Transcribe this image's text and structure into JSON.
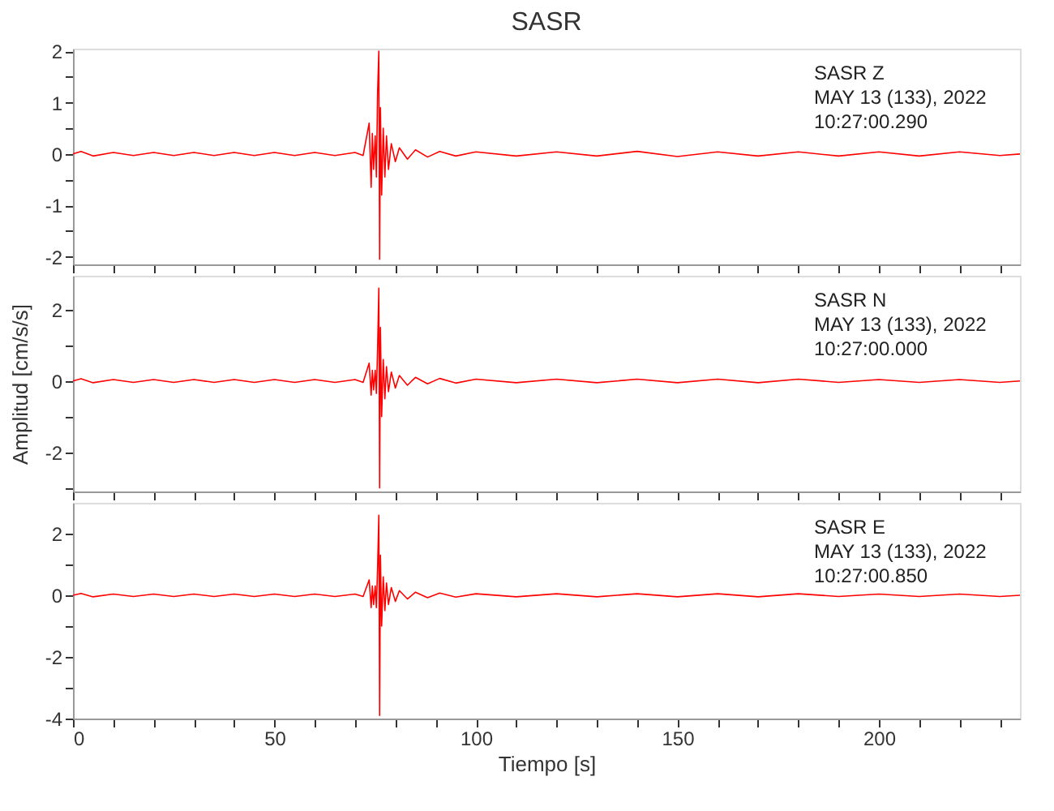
{
  "chart_data": [
    {
      "type": "line",
      "title": "SASR",
      "xlim": [
        0,
        235
      ],
      "ylim": [
        -2.15,
        2.05
      ],
      "tick_labels": "y",
      "grid": false,
      "legend": false,
      "marker": "none",
      "line_style": "solid",
      "xticks": [
        0,
        {
          "value": 10,
          "label": null
        },
        {
          "value": 20,
          "label": null
        },
        {
          "value": 30,
          "label": null
        },
        {
          "value": 40,
          "label": null
        },
        50,
        {
          "value": 60,
          "label": null
        },
        {
          "value": 70,
          "label": null
        },
        {
          "value": 80,
          "label": null
        },
        {
          "value": 90,
          "label": null
        },
        100,
        {
          "value": 110,
          "label": null
        },
        {
          "value": 120,
          "label": null
        },
        {
          "value": 130,
          "label": null
        },
        {
          "value": 140,
          "label": null
        },
        150,
        {
          "value": 160,
          "label": null
        },
        {
          "value": 170,
          "label": null
        },
        {
          "value": 180,
          "label": null
        },
        {
          "value": 190,
          "label": null
        },
        200,
        {
          "value": 210,
          "label": null
        },
        {
          "value": 220,
          "label": null
        },
        {
          "value": 230,
          "label": null
        }
      ],
      "yticks": [
        -2,
        {
          "value": -1.5,
          "label": null
        },
        -1,
        {
          "value": -0.5,
          "label": null
        },
        0,
        {
          "value": 0.5,
          "label": null
        },
        1,
        {
          "value": 1.5,
          "label": null
        },
        2
      ],
      "annotations": [
        "SASR   Z",
        "MAY 13 (133), 2022",
        "10:27:00.290"
      ],
      "x": [
        0,
        2,
        5,
        10,
        15,
        20,
        25,
        30,
        35,
        40,
        45,
        50,
        55,
        60,
        65,
        70,
        72,
        73.5,
        74,
        74.3,
        74.6,
        75,
        75.3,
        75.6,
        75.9,
        76.1,
        76.3,
        76.6,
        77,
        77.4,
        77.8,
        78.3,
        79,
        80,
        81,
        83,
        85,
        88,
        91,
        95,
        100,
        110,
        120,
        130,
        140,
        150,
        160,
        170,
        180,
        190,
        200,
        210,
        220,
        230,
        235
      ],
      "series": [
        {
          "color": "#ff0000",
          "values": [
            0,
            0.05,
            -0.04,
            0.03,
            -0.03,
            0.03,
            -0.03,
            0.03,
            -0.03,
            0.03,
            -0.03,
            0.03,
            -0.03,
            0.03,
            -0.03,
            0.03,
            -0.03,
            0.6,
            -0.65,
            0.4,
            -0.3,
            0.35,
            -0.45,
            1.2,
            2.0,
            -2.05,
            0.9,
            -0.8,
            0.5,
            -0.45,
            0.35,
            -0.3,
            0.2,
            -0.15,
            0.12,
            -0.1,
            0.08,
            -0.06,
            0.05,
            -0.04,
            0.04,
            -0.04,
            0.04,
            -0.04,
            0.05,
            -0.05,
            0.04,
            -0.04,
            0.04,
            -0.04,
            0.04,
            -0.04,
            0.04,
            -0.03,
            0
          ]
        }
      ]
    },
    {
      "type": "line",
      "ylabel": "Amplitud [cm/s/s]",
      "xlim": [
        0,
        235
      ],
      "ylim": [
        -3.1,
        2.95
      ],
      "tick_labels": "y",
      "grid": false,
      "legend": false,
      "marker": "none",
      "line_style": "solid",
      "xticks": [
        0,
        {
          "value": 10,
          "label": null
        },
        {
          "value": 20,
          "label": null
        },
        {
          "value": 30,
          "label": null
        },
        {
          "value": 40,
          "label": null
        },
        50,
        {
          "value": 60,
          "label": null
        },
        {
          "value": 70,
          "label": null
        },
        {
          "value": 80,
          "label": null
        },
        {
          "value": 90,
          "label": null
        },
        100,
        {
          "value": 110,
          "label": null
        },
        {
          "value": 120,
          "label": null
        },
        {
          "value": 130,
          "label": null
        },
        {
          "value": 140,
          "label": null
        },
        150,
        {
          "value": 160,
          "label": null
        },
        {
          "value": 170,
          "label": null
        },
        {
          "value": 180,
          "label": null
        },
        {
          "value": 190,
          "label": null
        },
        200,
        {
          "value": 210,
          "label": null
        },
        {
          "value": 220,
          "label": null
        },
        {
          "value": 230,
          "label": null
        }
      ],
      "yticks": [
        {
          "value": -3,
          "label": null
        },
        -2,
        {
          "value": -1,
          "label": null
        },
        0,
        {
          "value": 1,
          "label": null
        },
        2
      ],
      "annotations": [
        "SASR   N",
        "MAY 13 (133), 2022",
        "10:27:00.000"
      ],
      "x": [
        0,
        2,
        5,
        10,
        15,
        20,
        25,
        30,
        35,
        40,
        45,
        50,
        55,
        60,
        65,
        70,
        72,
        73.5,
        74,
        74.3,
        74.6,
        75,
        75.3,
        75.6,
        75.9,
        76.1,
        76.3,
        76.6,
        77,
        77.4,
        77.8,
        78.3,
        79,
        80,
        81,
        83,
        85,
        88,
        91,
        95,
        100,
        110,
        120,
        130,
        140,
        150,
        160,
        170,
        180,
        190,
        200,
        210,
        220,
        230,
        235
      ],
      "series": [
        {
          "color": "#ff0000",
          "values": [
            0,
            0.06,
            -0.05,
            0.04,
            -0.04,
            0.04,
            -0.04,
            0.04,
            -0.04,
            0.04,
            -0.04,
            0.04,
            -0.04,
            0.04,
            -0.04,
            0.04,
            -0.04,
            0.5,
            -0.4,
            0.3,
            -0.25,
            0.3,
            -0.35,
            0.9,
            2.6,
            -3.0,
            1.5,
            -1.0,
            0.6,
            -0.5,
            0.4,
            -0.3,
            0.25,
            -0.2,
            0.15,
            -0.12,
            0.1,
            -0.08,
            0.07,
            -0.06,
            0.05,
            -0.05,
            0.05,
            -0.05,
            0.05,
            -0.05,
            0.05,
            -0.05,
            0.05,
            -0.04,
            0.04,
            -0.04,
            0.04,
            -0.04,
            0
          ]
        }
      ]
    },
    {
      "type": "line",
      "xlabel": "Tiempo [s]",
      "xlim": [
        0,
        235
      ],
      "ylim": [
        -4,
        3
      ],
      "grid": false,
      "legend": false,
      "marker": "none",
      "line_style": "solid",
      "xticks": [
        0,
        {
          "value": 10,
          "label": null
        },
        {
          "value": 20,
          "label": null
        },
        {
          "value": 30,
          "label": null
        },
        {
          "value": 40,
          "label": null
        },
        50,
        {
          "value": 60,
          "label": null
        },
        {
          "value": 70,
          "label": null
        },
        {
          "value": 80,
          "label": null
        },
        {
          "value": 90,
          "label": null
        },
        100,
        {
          "value": 110,
          "label": null
        },
        {
          "value": 120,
          "label": null
        },
        {
          "value": 130,
          "label": null
        },
        {
          "value": 140,
          "label": null
        },
        150,
        {
          "value": 160,
          "label": null
        },
        {
          "value": 170,
          "label": null
        },
        {
          "value": 180,
          "label": null
        },
        {
          "value": 190,
          "label": null
        },
        200,
        {
          "value": 210,
          "label": null
        },
        {
          "value": 220,
          "label": null
        },
        {
          "value": 230,
          "label": null
        }
      ],
      "yticks": [
        -4,
        {
          "value": -3,
          "label": null
        },
        -2,
        {
          "value": -1,
          "label": null
        },
        0,
        {
          "value": 1,
          "label": null
        },
        2
      ],
      "annotations": [
        "SASR   E",
        "MAY 13 (133), 2022",
        "10:27:00.850"
      ],
      "x": [
        0,
        2,
        5,
        10,
        15,
        20,
        25,
        30,
        35,
        40,
        45,
        50,
        55,
        60,
        65,
        70,
        72,
        73.5,
        74,
        74.3,
        74.6,
        75,
        75.3,
        75.6,
        75.9,
        76.1,
        76.3,
        76.6,
        77,
        77.4,
        77.8,
        78.3,
        79,
        80,
        81,
        83,
        85,
        88,
        91,
        95,
        100,
        110,
        120,
        130,
        140,
        150,
        160,
        170,
        180,
        190,
        200,
        210,
        220,
        230,
        235
      ],
      "series": [
        {
          "color": "#ff0000",
          "values": [
            0,
            0.06,
            -0.05,
            0.04,
            -0.04,
            0.04,
            -0.04,
            0.04,
            -0.04,
            0.04,
            -0.04,
            0.04,
            -0.04,
            0.04,
            -0.04,
            0.04,
            -0.04,
            0.5,
            -0.4,
            0.3,
            -0.3,
            0.3,
            -0.4,
            0.9,
            2.6,
            -3.9,
            1.3,
            -1.0,
            0.6,
            -0.5,
            0.4,
            -0.3,
            0.25,
            -0.2,
            0.15,
            -0.12,
            0.1,
            -0.08,
            0.07,
            -0.06,
            0.05,
            -0.05,
            0.05,
            -0.05,
            0.05,
            -0.05,
            0.05,
            -0.05,
            0.05,
            -0.04,
            0.04,
            -0.04,
            0.04,
            -0.04,
            0
          ]
        }
      ]
    }
  ]
}
